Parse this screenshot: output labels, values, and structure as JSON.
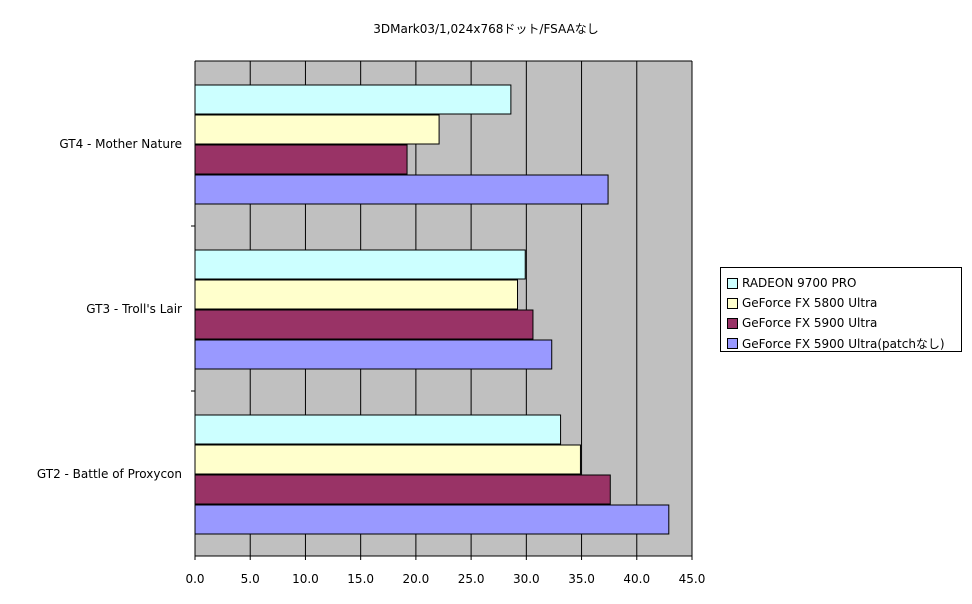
{
  "chart_data": {
    "type": "bar",
    "orientation": "horizontal",
    "title": "3DMark03/1,024x768ドット/FSAAなし",
    "xlabel": "",
    "ylabel": "",
    "xlim": [
      0,
      45
    ],
    "xticks": [
      "0.0",
      "5.0",
      "10.0",
      "15.0",
      "20.0",
      "25.0",
      "30.0",
      "35.0",
      "40.0",
      "45.0"
    ],
    "grid": true,
    "plot_background": "#c0c0c0",
    "legend_position": "right",
    "categories": [
      "GT4 - Mother Nature",
      "GT3 - Troll's Lair",
      "GT2 - Battle of Proxycon"
    ],
    "series": [
      {
        "name": "RADEON 9700 PRO",
        "color": "#ccffff",
        "values": [
          28.6,
          29.9,
          33.1
        ]
      },
      {
        "name": "GeForce FX 5800 Ultra",
        "color": "#ffffcc",
        "values": [
          22.1,
          29.2,
          34.9
        ]
      },
      {
        "name": "GeForce FX 5900 Ultra",
        "color": "#993366",
        "values": [
          19.2,
          30.6,
          37.6
        ]
      },
      {
        "name": "GeForce FX 5900 Ultra(patchなし)",
        "color": "#9999ff",
        "values": [
          37.4,
          32.3,
          42.9
        ]
      }
    ]
  }
}
